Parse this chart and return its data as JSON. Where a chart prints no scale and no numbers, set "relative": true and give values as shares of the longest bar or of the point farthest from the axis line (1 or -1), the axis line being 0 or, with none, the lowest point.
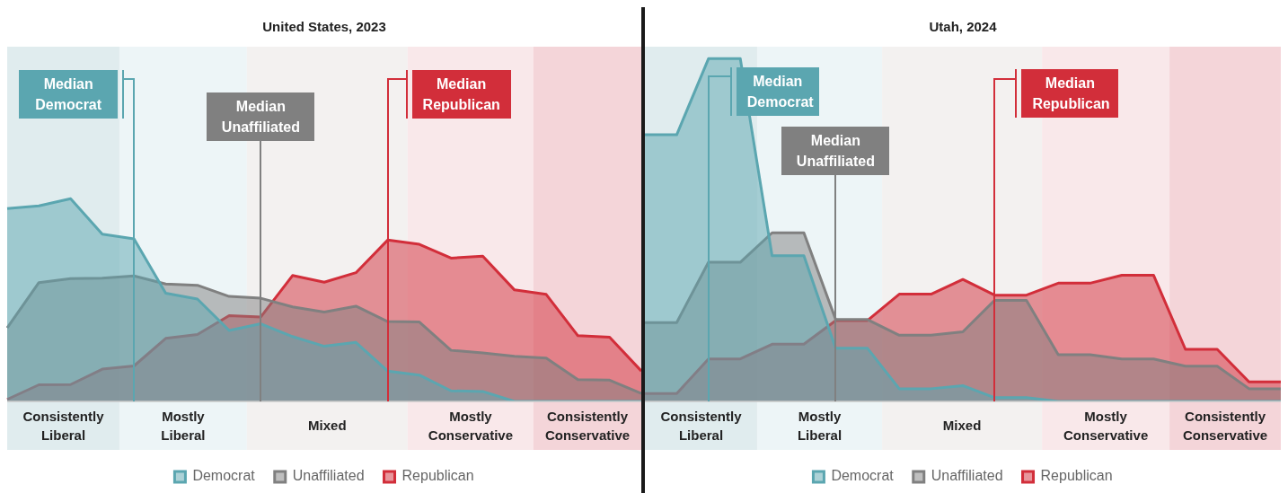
{
  "chart_data": [
    {
      "type": "area",
      "title": "United States, 2023",
      "relative": true,
      "categories": [
        null,
        null,
        null,
        null,
        null,
        null,
        null,
        null,
        null,
        null,
        null,
        null,
        null,
        null,
        null,
        null,
        null,
        null,
        null,
        null,
        null
      ],
      "tick_labels": false,
      "legend": "bottom",
      "series": [
        {
          "name": "Democrat",
          "color": "#5ba6b0",
          "values": [
            0.951,
            0.965,
            1,
            0.825,
            0.802,
            0.534,
            0.505,
            0.35,
            0.383,
            0.32,
            0.272,
            0.291,
            0.15,
            0.13,
            0.052,
            0.049,
            0,
            0,
            0,
            0,
            0
          ]
        },
        {
          "name": "Unaffiliated",
          "color": "#808080",
          "values": [
            0.363,
            0.586,
            0.606,
            0.608,
            0.619,
            0.579,
            0.573,
            0.518,
            0.509,
            0.466,
            0.441,
            0.47,
            0.394,
            0.392,
            0.252,
            0.239,
            0.223,
            0.214,
            0.107,
            0.105,
            0.039
          ]
        },
        {
          "name": "Republican",
          "color": "#d22e3a",
          "values": [
            0.01,
            0.082,
            0.083,
            0.159,
            0.175,
            0.311,
            0.33,
            0.423,
            0.417,
            0.621,
            0.588,
            0.635,
            0.796,
            0.775,
            0.707,
            0.717,
            0.55,
            0.528,
            0.324,
            0.317,
            0.15
          ]
        }
      ],
      "annotations": [
        "Consistently Liberal",
        "Mostly Liberal",
        "Mixed",
        "Mostly Conservative",
        "Consistently Conservative",
        "Median Democrat",
        "Median Unaffiliated",
        "Median Republican"
      ]
    },
    {
      "type": "area",
      "title": "Utah, 2024",
      "relative": true,
      "categories": [
        null,
        null,
        null,
        null,
        null,
        null,
        null,
        null,
        null,
        null,
        null,
        null,
        null,
        null,
        null,
        null,
        null,
        null,
        null,
        null,
        null
      ],
      "tick_labels": false,
      "legend": "bottom",
      "series": [
        {
          "name": "Democrat",
          "color": "#5ba6b0",
          "values": [
            0.778,
            0.778,
            1,
            1,
            0.425,
            0.425,
            0.155,
            0.155,
            0.037,
            0.037,
            0.046,
            0.011,
            0.011,
            0,
            0,
            0,
            0,
            0,
            0,
            0,
            0
          ]
        },
        {
          "name": "Unaffiliated",
          "color": "#808080",
          "values": [
            0.23,
            0.23,
            0.406,
            0.406,
            0.492,
            0.492,
            0.239,
            0.239,
            0.193,
            0.193,
            0.203,
            0.295,
            0.295,
            0.136,
            0.136,
            0.124,
            0.124,
            0.103,
            0.103,
            0.037,
            0.037
          ]
        },
        {
          "name": "Republican",
          "color": "#d22e3a",
          "values": [
            0.023,
            0.023,
            0.124,
            0.124,
            0.167,
            0.167,
            0.236,
            0.236,
            0.313,
            0.313,
            0.356,
            0.31,
            0.31,
            0.345,
            0.345,
            0.368,
            0.368,
            0.152,
            0.152,
            0.057,
            0.057
          ]
        }
      ],
      "annotations": [
        "Consistently Liberal",
        "Mostly Liberal",
        "Mixed",
        "Mostly Conservative",
        "Consistently Conservative",
        "Median Democrat",
        "Median Unaffiliated",
        "Median Republican"
      ]
    }
  ]
}
